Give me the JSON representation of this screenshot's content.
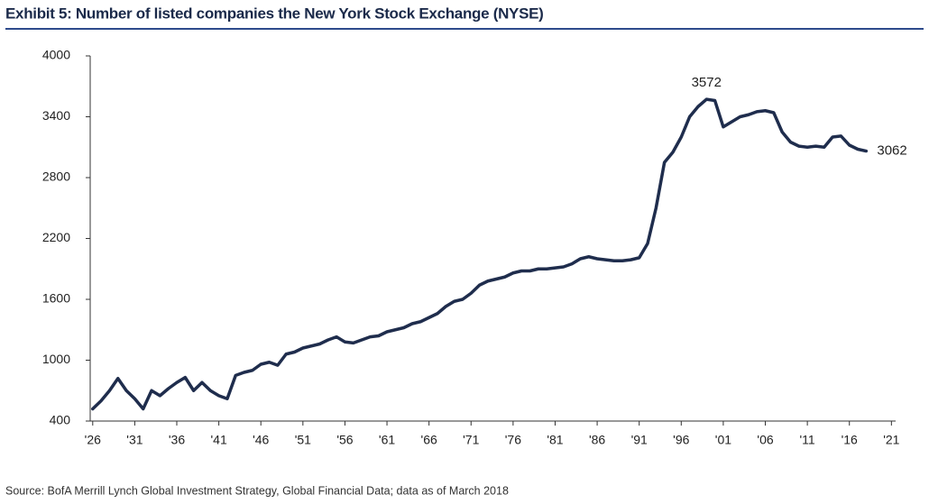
{
  "chart_data": {
    "type": "line",
    "title": "Exhibit 5: Number of listed companies the New York Stock Exchange (NYSE)",
    "source": "Source:  BofA Merrill Lynch Global Investment Strategy, Global Financial Data; data as of March 2018",
    "x": [
      1926,
      1927,
      1928,
      1929,
      1930,
      1931,
      1932,
      1933,
      1934,
      1935,
      1936,
      1937,
      1938,
      1939,
      1940,
      1941,
      1942,
      1943,
      1944,
      1945,
      1946,
      1947,
      1948,
      1949,
      1950,
      1951,
      1952,
      1953,
      1954,
      1955,
      1956,
      1957,
      1958,
      1959,
      1960,
      1961,
      1962,
      1963,
      1964,
      1965,
      1966,
      1967,
      1968,
      1969,
      1970,
      1971,
      1972,
      1973,
      1974,
      1975,
      1976,
      1977,
      1978,
      1979,
      1980,
      1981,
      1982,
      1983,
      1984,
      1985,
      1986,
      1987,
      1988,
      1989,
      1990,
      1991,
      1992,
      1993,
      1994,
      1995,
      1996,
      1997,
      1998,
      1999,
      2000,
      2001,
      2002,
      2003,
      2004,
      2005,
      2006,
      2007,
      2008,
      2009,
      2010,
      2011,
      2012,
      2013,
      2014,
      2015,
      2016,
      2017,
      2018
    ],
    "series": [
      {
        "color": "#1f2d4d",
        "values": [
          520,
          600,
          700,
          820,
          700,
          620,
          520,
          700,
          650,
          720,
          780,
          830,
          700,
          780,
          700,
          650,
          620,
          850,
          880,
          900,
          960,
          980,
          950,
          1060,
          1080,
          1120,
          1140,
          1160,
          1200,
          1230,
          1180,
          1170,
          1200,
          1230,
          1240,
          1280,
          1300,
          1320,
          1360,
          1380,
          1420,
          1460,
          1530,
          1580,
          1600,
          1660,
          1740,
          1780,
          1800,
          1820,
          1860,
          1880,
          1880,
          1900,
          1900,
          1910,
          1920,
          1950,
          2000,
          2020,
          2000,
          1990,
          1980,
          1980,
          1990,
          2010,
          2150,
          2500,
          2950,
          3050,
          3200,
          3400,
          3500,
          3572,
          3560,
          3300,
          3350,
          3400,
          3420,
          3450,
          3460,
          3440,
          3250,
          3150,
          3110,
          3100,
          3110,
          3100,
          3200,
          3210,
          3120,
          3080,
          3062
        ]
      }
    ],
    "annotations": [
      {
        "x": 1999,
        "value": 3572
      },
      {
        "x": 2018,
        "value": 3062
      }
    ],
    "xlim": [
      1925.7,
      2021.5
    ],
    "ylim": [
      400,
      4000
    ],
    "xticks": [
      {
        "value": 1926,
        "label": "'26"
      },
      {
        "value": 1931,
        "label": "'31"
      },
      {
        "value": 1936,
        "label": "'36"
      },
      {
        "value": 1941,
        "label": "'41"
      },
      {
        "value": 1946,
        "label": "'46"
      },
      {
        "value": 1951,
        "label": "'51"
      },
      {
        "value": 1956,
        "label": "'56"
      },
      {
        "value": 1961,
        "label": "'61"
      },
      {
        "value": 1966,
        "label": "'66"
      },
      {
        "value": 1971,
        "label": "'71"
      },
      {
        "value": 1976,
        "label": "'76"
      },
      {
        "value": 1981,
        "label": "'81"
      },
      {
        "value": 1986,
        "label": "'86"
      },
      {
        "value": 1991,
        "label": "'91"
      },
      {
        "value": 1996,
        "label": "'96"
      },
      {
        "value": 2001,
        "label": "'01"
      },
      {
        "value": 2006,
        "label": "'06"
      },
      {
        "value": 2011,
        "label": "'11"
      },
      {
        "value": 2016,
        "label": "'16"
      },
      {
        "value": 2021,
        "label": "'21"
      }
    ],
    "yticks": [
      400,
      1000,
      1600,
      2200,
      2800,
      3400,
      4000
    ]
  }
}
